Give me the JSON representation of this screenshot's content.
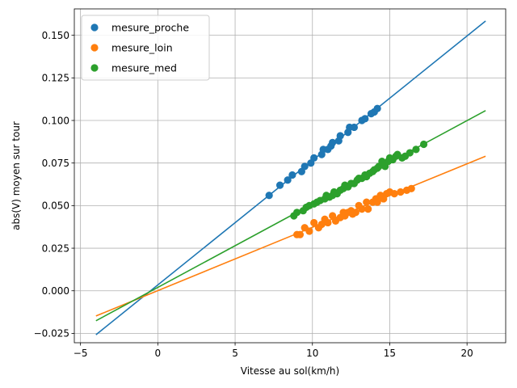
{
  "chart_data": {
    "type": "scatter",
    "xlabel": "Vitesse au sol(km/h)",
    "ylabel": "abs(V) moyen sur tour",
    "xlim": [
      -5.4,
      22.5
    ],
    "ylim": [
      -0.0305,
      0.1655
    ],
    "xticks": [
      -5,
      0,
      5,
      10,
      15,
      20
    ],
    "xtick_labels": [
      "−5",
      "0",
      "5",
      "10",
      "15",
      "20"
    ],
    "yticks": [
      -0.025,
      0,
      0.025,
      0.05,
      0.075,
      0.1,
      0.125,
      0.15
    ],
    "ytick_labels": [
      "−0.025",
      "0.000",
      "0.025",
      "0.050",
      "0.075",
      "0.100",
      "0.125",
      "0.150"
    ],
    "grid": true,
    "legend_position": "top-left",
    "series": [
      {
        "name": "mesure_proche",
        "color": "#1f77b4",
        "fit_line": {
          "x": [
            -4,
            21.2
          ],
          "y": [
            -0.0258,
            0.1584
          ]
        },
        "points": [
          [
            7.2,
            0.056
          ],
          [
            7.9,
            0.062
          ],
          [
            8.4,
            0.065
          ],
          [
            8.7,
            0.068
          ],
          [
            9.3,
            0.07
          ],
          [
            9.5,
            0.073
          ],
          [
            9.9,
            0.075
          ],
          [
            10.1,
            0.078
          ],
          [
            10.6,
            0.08
          ],
          [
            10.7,
            0.083
          ],
          [
            11.0,
            0.083
          ],
          [
            11.2,
            0.085
          ],
          [
            11.3,
            0.087
          ],
          [
            11.7,
            0.088
          ],
          [
            11.8,
            0.091
          ],
          [
            12.3,
            0.093
          ],
          [
            12.4,
            0.096
          ],
          [
            12.7,
            0.096
          ],
          [
            13.2,
            0.1
          ],
          [
            13.4,
            0.101
          ],
          [
            13.8,
            0.104
          ],
          [
            14.0,
            0.105
          ],
          [
            14.2,
            0.107
          ]
        ]
      },
      {
        "name": "mesure_loin",
        "color": "#ff7f0e",
        "fit_line": {
          "x": [
            -4,
            21.2
          ],
          "y": [
            -0.0148,
            0.079
          ]
        },
        "points": [
          [
            9.0,
            0.033
          ],
          [
            9.2,
            0.033
          ],
          [
            9.5,
            0.037
          ],
          [
            9.8,
            0.035
          ],
          [
            10.1,
            0.04
          ],
          [
            10.4,
            0.037
          ],
          [
            10.6,
            0.039
          ],
          [
            10.8,
            0.042
          ],
          [
            11.0,
            0.04
          ],
          [
            11.3,
            0.044
          ],
          [
            11.5,
            0.041
          ],
          [
            11.8,
            0.043
          ],
          [
            12.0,
            0.046
          ],
          [
            12.1,
            0.044
          ],
          [
            12.3,
            0.046
          ],
          [
            12.5,
            0.047
          ],
          [
            12.6,
            0.045
          ],
          [
            12.8,
            0.046
          ],
          [
            13.0,
            0.05
          ],
          [
            13.2,
            0.048
          ],
          [
            13.5,
            0.052
          ],
          [
            13.6,
            0.048
          ],
          [
            13.9,
            0.052
          ],
          [
            14.1,
            0.054
          ],
          [
            14.2,
            0.052
          ],
          [
            14.4,
            0.056
          ],
          [
            14.6,
            0.054
          ],
          [
            14.8,
            0.057
          ],
          [
            15.0,
            0.058
          ],
          [
            15.3,
            0.057
          ],
          [
            15.7,
            0.058
          ],
          [
            16.1,
            0.059
          ],
          [
            16.4,
            0.06
          ]
        ]
      },
      {
        "name": "mesure_med",
        "color": "#2ca02c",
        "fit_line": {
          "x": [
            -4,
            21.2
          ],
          "y": [
            -0.0176,
            0.1058
          ]
        },
        "points": [
          [
            8.8,
            0.044
          ],
          [
            9.0,
            0.046
          ],
          [
            9.4,
            0.047
          ],
          [
            9.6,
            0.049
          ],
          [
            9.8,
            0.05
          ],
          [
            10.1,
            0.051
          ],
          [
            10.3,
            0.052
          ],
          [
            10.5,
            0.053
          ],
          [
            10.8,
            0.054
          ],
          [
            10.9,
            0.056
          ],
          [
            11.1,
            0.055
          ],
          [
            11.3,
            0.056
          ],
          [
            11.4,
            0.058
          ],
          [
            11.6,
            0.057
          ],
          [
            11.8,
            0.059
          ],
          [
            12.0,
            0.06
          ],
          [
            12.1,
            0.062
          ],
          [
            12.3,
            0.061
          ],
          [
            12.5,
            0.063
          ],
          [
            12.7,
            0.063
          ],
          [
            12.9,
            0.065
          ],
          [
            13.0,
            0.066
          ],
          [
            13.2,
            0.066
          ],
          [
            13.4,
            0.068
          ],
          [
            13.5,
            0.067
          ],
          [
            13.7,
            0.069
          ],
          [
            13.9,
            0.07
          ],
          [
            14.0,
            0.071
          ],
          [
            14.2,
            0.072
          ],
          [
            14.3,
            0.073
          ],
          [
            14.5,
            0.076
          ],
          [
            14.7,
            0.073
          ],
          [
            14.9,
            0.076
          ],
          [
            15.0,
            0.078
          ],
          [
            15.2,
            0.077
          ],
          [
            15.4,
            0.079
          ],
          [
            15.5,
            0.08
          ],
          [
            15.8,
            0.078
          ],
          [
            16.0,
            0.079
          ],
          [
            16.3,
            0.081
          ],
          [
            16.7,
            0.083
          ],
          [
            17.2,
            0.086
          ]
        ]
      }
    ]
  }
}
